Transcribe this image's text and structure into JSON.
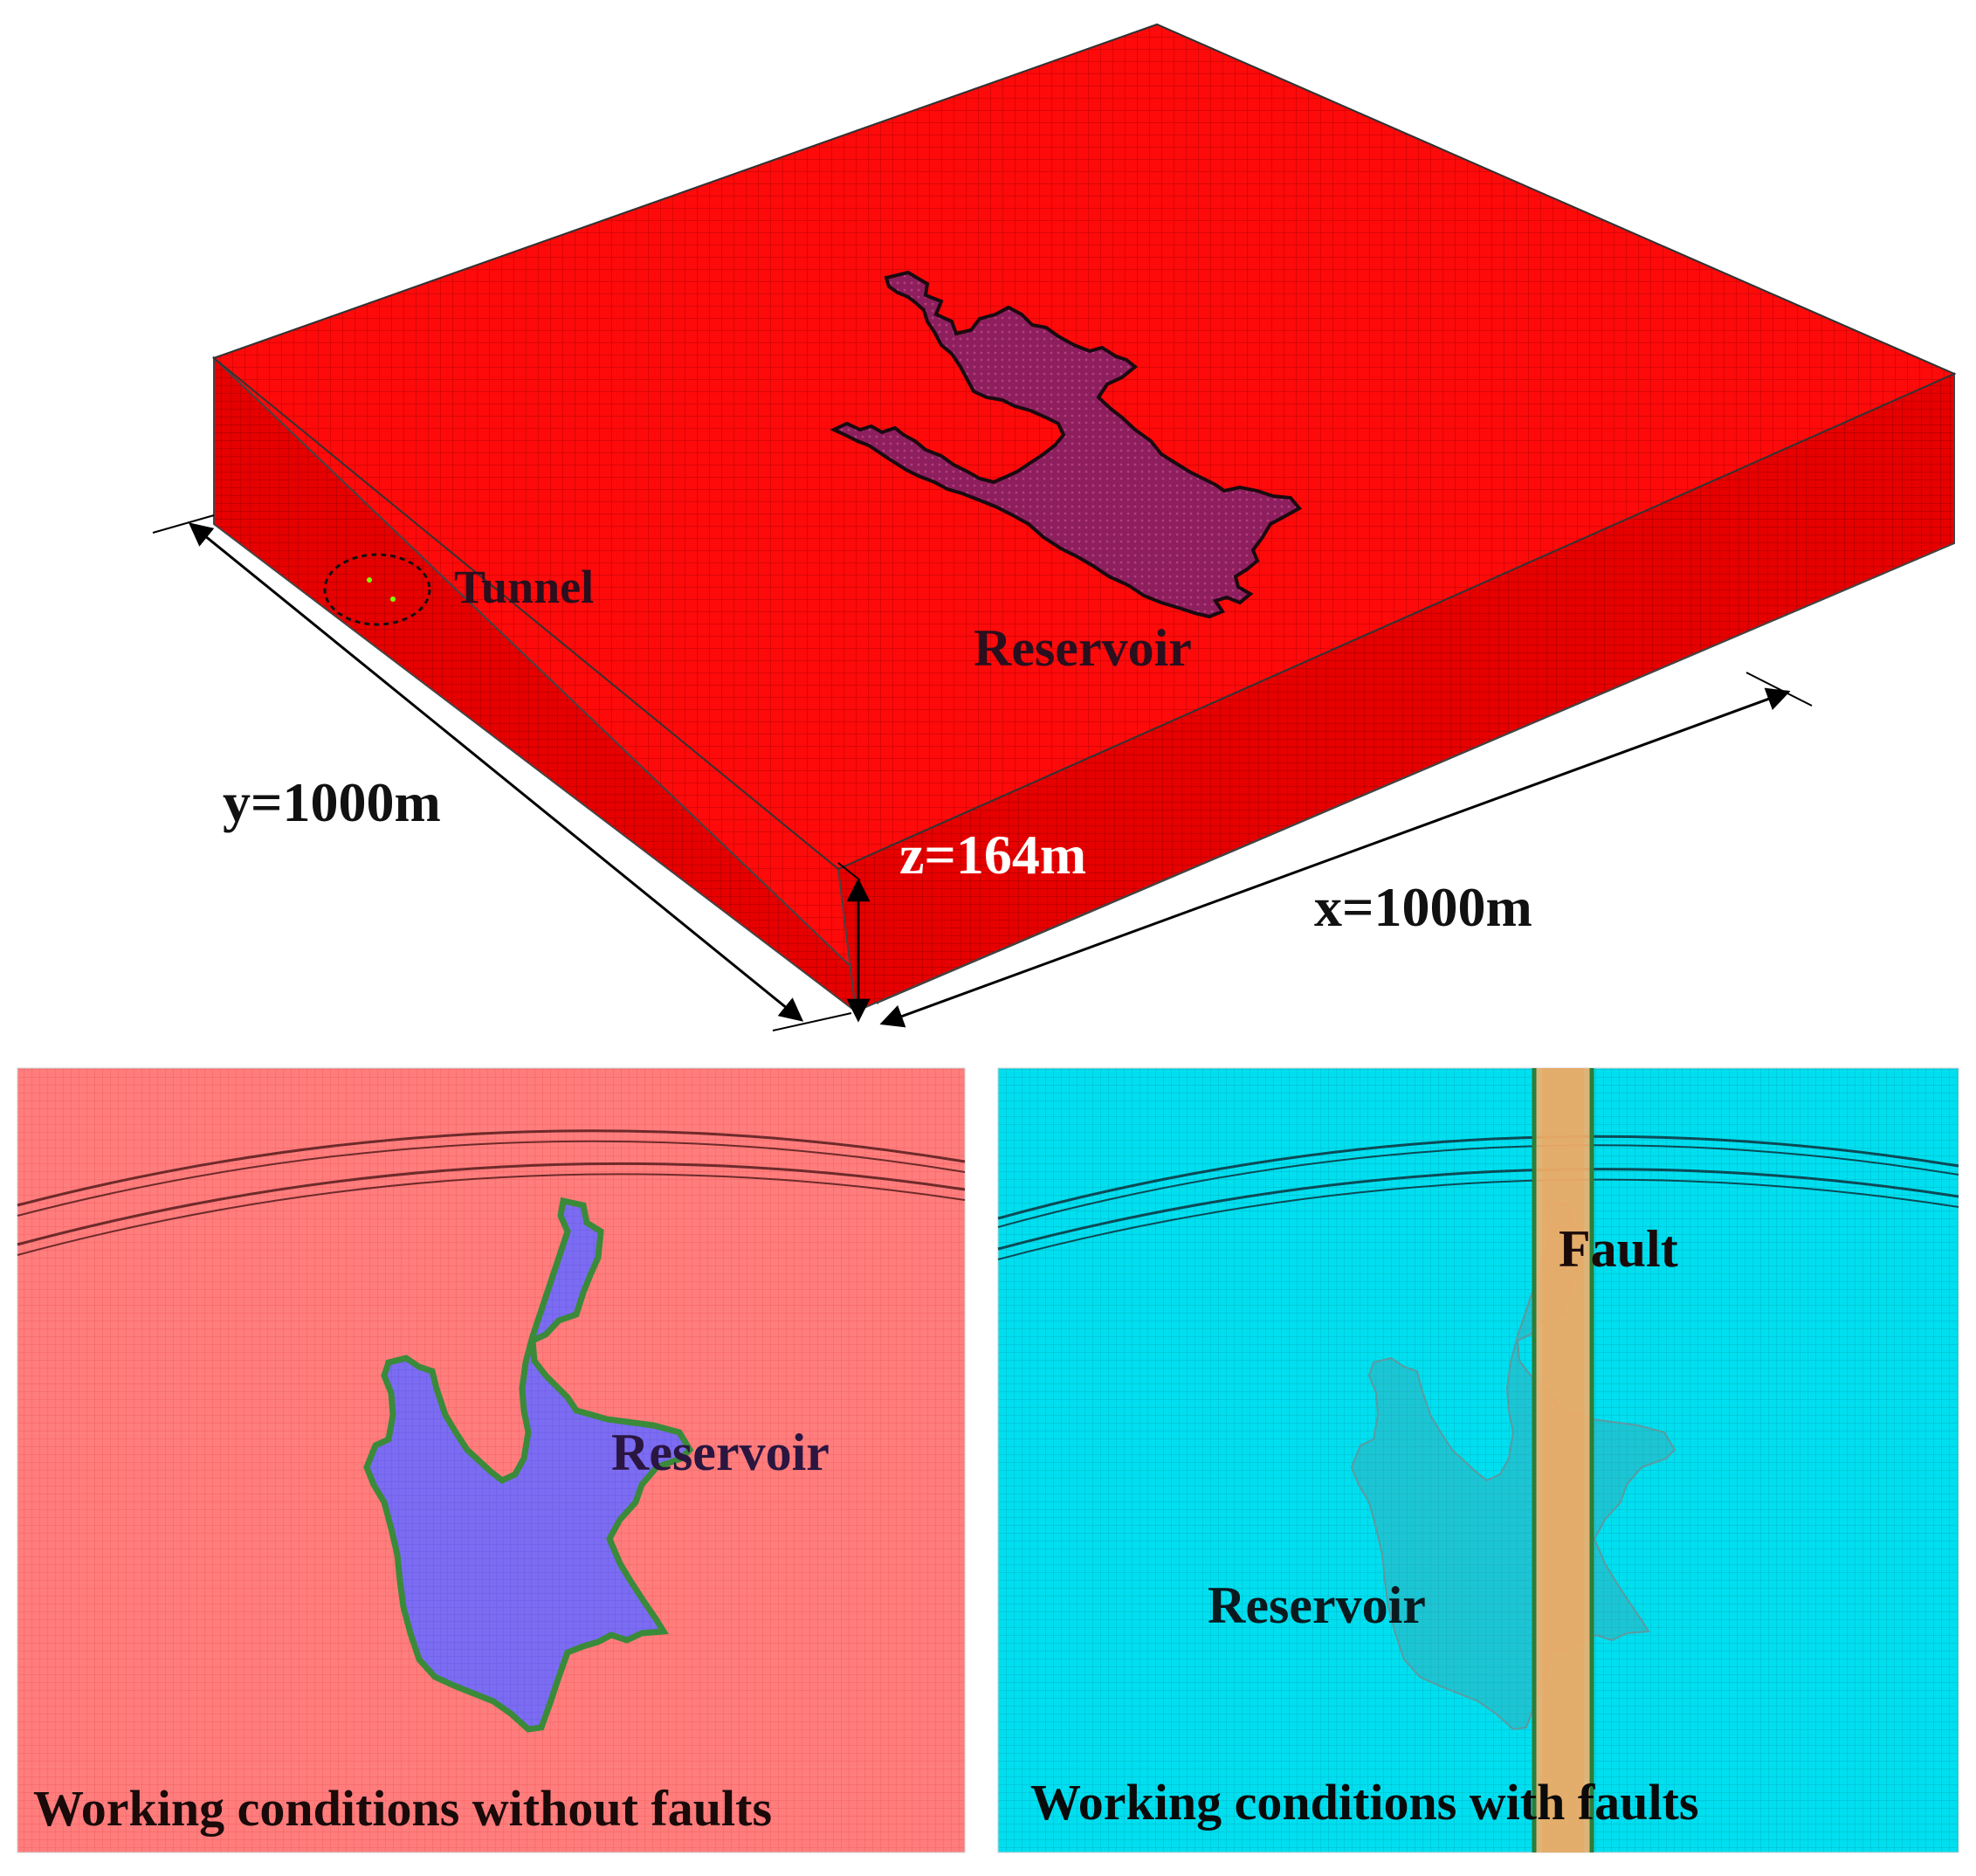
{
  "top_panel": {
    "tunnel_label": "Tunnel",
    "reservoir_label": "Reservoir",
    "y_dimension": "y=1000m",
    "x_dimension": "x=1000m",
    "z_dimension": "z=164m"
  },
  "bottom_left_panel": {
    "reservoir_label": "Reservoir",
    "caption": "Working conditions without faults"
  },
  "bottom_right_panel": {
    "fault_label": "Fault",
    "reservoir_label": "Reservoir",
    "caption": "Working conditions with faults"
  },
  "colors": {
    "model_top": "#ff0a0a",
    "model_side": "#e80000",
    "reservoir_3d": "#8e1f5e",
    "panel_left_bg": "#ff7d7d",
    "reservoir_left": "#7c6cf2",
    "panel_right_bg": "#00dff0",
    "fault_band": "#f5b06a",
    "label_dark": "#2a0f1e",
    "label_white": "#ffffff"
  }
}
